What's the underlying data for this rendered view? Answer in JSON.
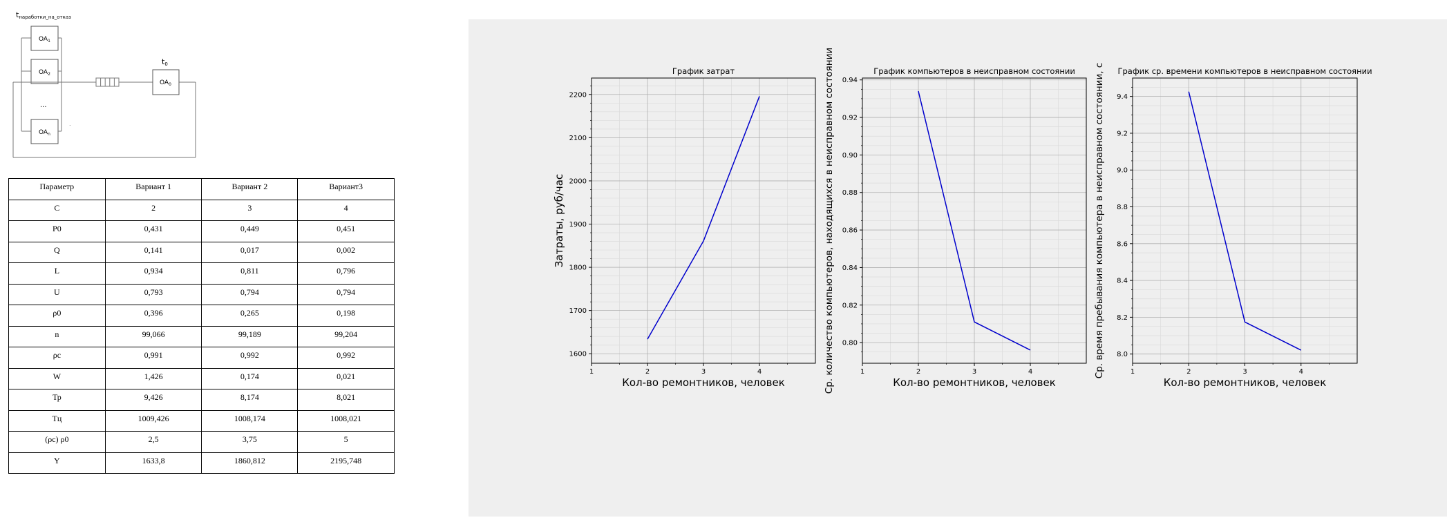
{
  "diagram": {
    "top_label_main": "t",
    "top_label_sub": "наработки_на_отказ",
    "channel_main": "OA",
    "channel_subs": [
      "1",
      "2",
      "n"
    ],
    "dots": "...",
    "server_main": "OA",
    "server_sub": "0",
    "server_time_main": "t",
    "server_time_sub": "0"
  },
  "table": {
    "headers": [
      "Параметр",
      "Вариант 1",
      "Вариант 2",
      "Вариант3"
    ],
    "rows": [
      [
        "C",
        "2",
        "3",
        "4"
      ],
      [
        "P0",
        "0,431",
        "0,449",
        "0,451"
      ],
      [
        "Q",
        "0,141",
        "0,017",
        "0,002"
      ],
      [
        "L",
        "0,934",
        "0,811",
        "0,796"
      ],
      [
        "U",
        "0,793",
        "0,794",
        "0,794"
      ],
      [
        "ρ0",
        "0,396",
        "0,265",
        "0,198"
      ],
      [
        "n",
        "99,066",
        "99,189",
        "99,204"
      ],
      [
        "ρс",
        "0,991",
        "0,992",
        "0,992"
      ],
      [
        "W",
        "1,426",
        "0,174",
        "0,021"
      ],
      [
        "Тр",
        "9,426",
        "8,174",
        "8,021"
      ],
      [
        "Тц",
        "1009,426",
        "1008,174",
        "1008,021"
      ],
      [
        "(ρс) ρ0",
        "2,5",
        "3,75",
        "5"
      ],
      [
        "Y",
        "1633,8",
        "1860,812",
        "2195,748"
      ]
    ]
  },
  "chart_data": [
    {
      "type": "line",
      "title": "График затрат",
      "xlabel": "Кол-во ремонтников, человек",
      "ylabel": "Затраты, руб/час",
      "x": [
        2,
        3,
        4
      ],
      "y": [
        1633.8,
        1860.812,
        2195.748
      ],
      "xlim": [
        1,
        5
      ],
      "ylim": [
        1578,
        2238
      ],
      "xticks": [
        1,
        2,
        3,
        4
      ],
      "yticks": [
        1600,
        1700,
        1800,
        1900,
        2000,
        2100,
        2200
      ],
      "minor_yticks": [
        1620,
        1640,
        1660,
        1680,
        1720,
        1740,
        1760,
        1780,
        1820,
        1840,
        1860,
        1880,
        1920,
        1940,
        1960,
        1980,
        2020,
        2040,
        2060,
        2080,
        2120,
        2140,
        2160,
        2180,
        2220
      ],
      "minor_xticks": [
        1.5,
        2.5,
        3.5,
        4.5
      ],
      "line_color": "#0000cc",
      "grid": true
    },
    {
      "type": "line",
      "title": "График компьютеров в неисправном состоянии",
      "xlabel": "Кол-во ремонтников, человек",
      "ylabel": "Ср. количество компьютеров, находящихся в неисправном состоянии",
      "x": [
        2,
        3,
        4
      ],
      "y": [
        0.934,
        0.811,
        0.796
      ],
      "xlim": [
        1,
        5
      ],
      "ylim": [
        0.789,
        0.941
      ],
      "xticks": [
        1,
        2,
        3,
        4
      ],
      "yticks": [
        0.8,
        0.82,
        0.84,
        0.86,
        0.88,
        0.9,
        0.92,
        0.94
      ],
      "minor_yticks": [
        0.795,
        0.805,
        0.81,
        0.815,
        0.825,
        0.83,
        0.835,
        0.845,
        0.85,
        0.855,
        0.865,
        0.87,
        0.875,
        0.885,
        0.89,
        0.895,
        0.905,
        0.91,
        0.915,
        0.925,
        0.93,
        0.935
      ],
      "minor_xticks": [
        1.5,
        2.5,
        3.5,
        4.5
      ],
      "line_color": "#0000cc",
      "grid": true
    },
    {
      "type": "line",
      "title": "График ср. времени компьютеров в неисправном состоянии",
      "xlabel": "Кол-во ремонтников, человек",
      "ylabel": "Ср. время пребывания компьютера в неисправном состоянии, с",
      "x": [
        2,
        3,
        4
      ],
      "y": [
        9.426,
        8.174,
        8.021
      ],
      "xlim": [
        1,
        5
      ],
      "ylim": [
        7.95,
        9.5
      ],
      "xticks": [
        1,
        2,
        3,
        4
      ],
      "yticks": [
        8.0,
        8.2,
        8.4,
        8.6,
        8.8,
        9.0,
        9.2,
        9.4
      ],
      "minor_yticks": [
        8.05,
        8.1,
        8.15,
        8.25,
        8.3,
        8.35,
        8.45,
        8.5,
        8.55,
        8.65,
        8.7,
        8.75,
        8.85,
        8.9,
        8.95,
        9.05,
        9.1,
        9.15,
        9.25,
        9.3,
        9.35,
        9.45
      ],
      "minor_xticks": [
        1.5,
        2.5,
        3.5,
        4.5
      ],
      "line_color": "#0000cc",
      "grid": true
    }
  ]
}
